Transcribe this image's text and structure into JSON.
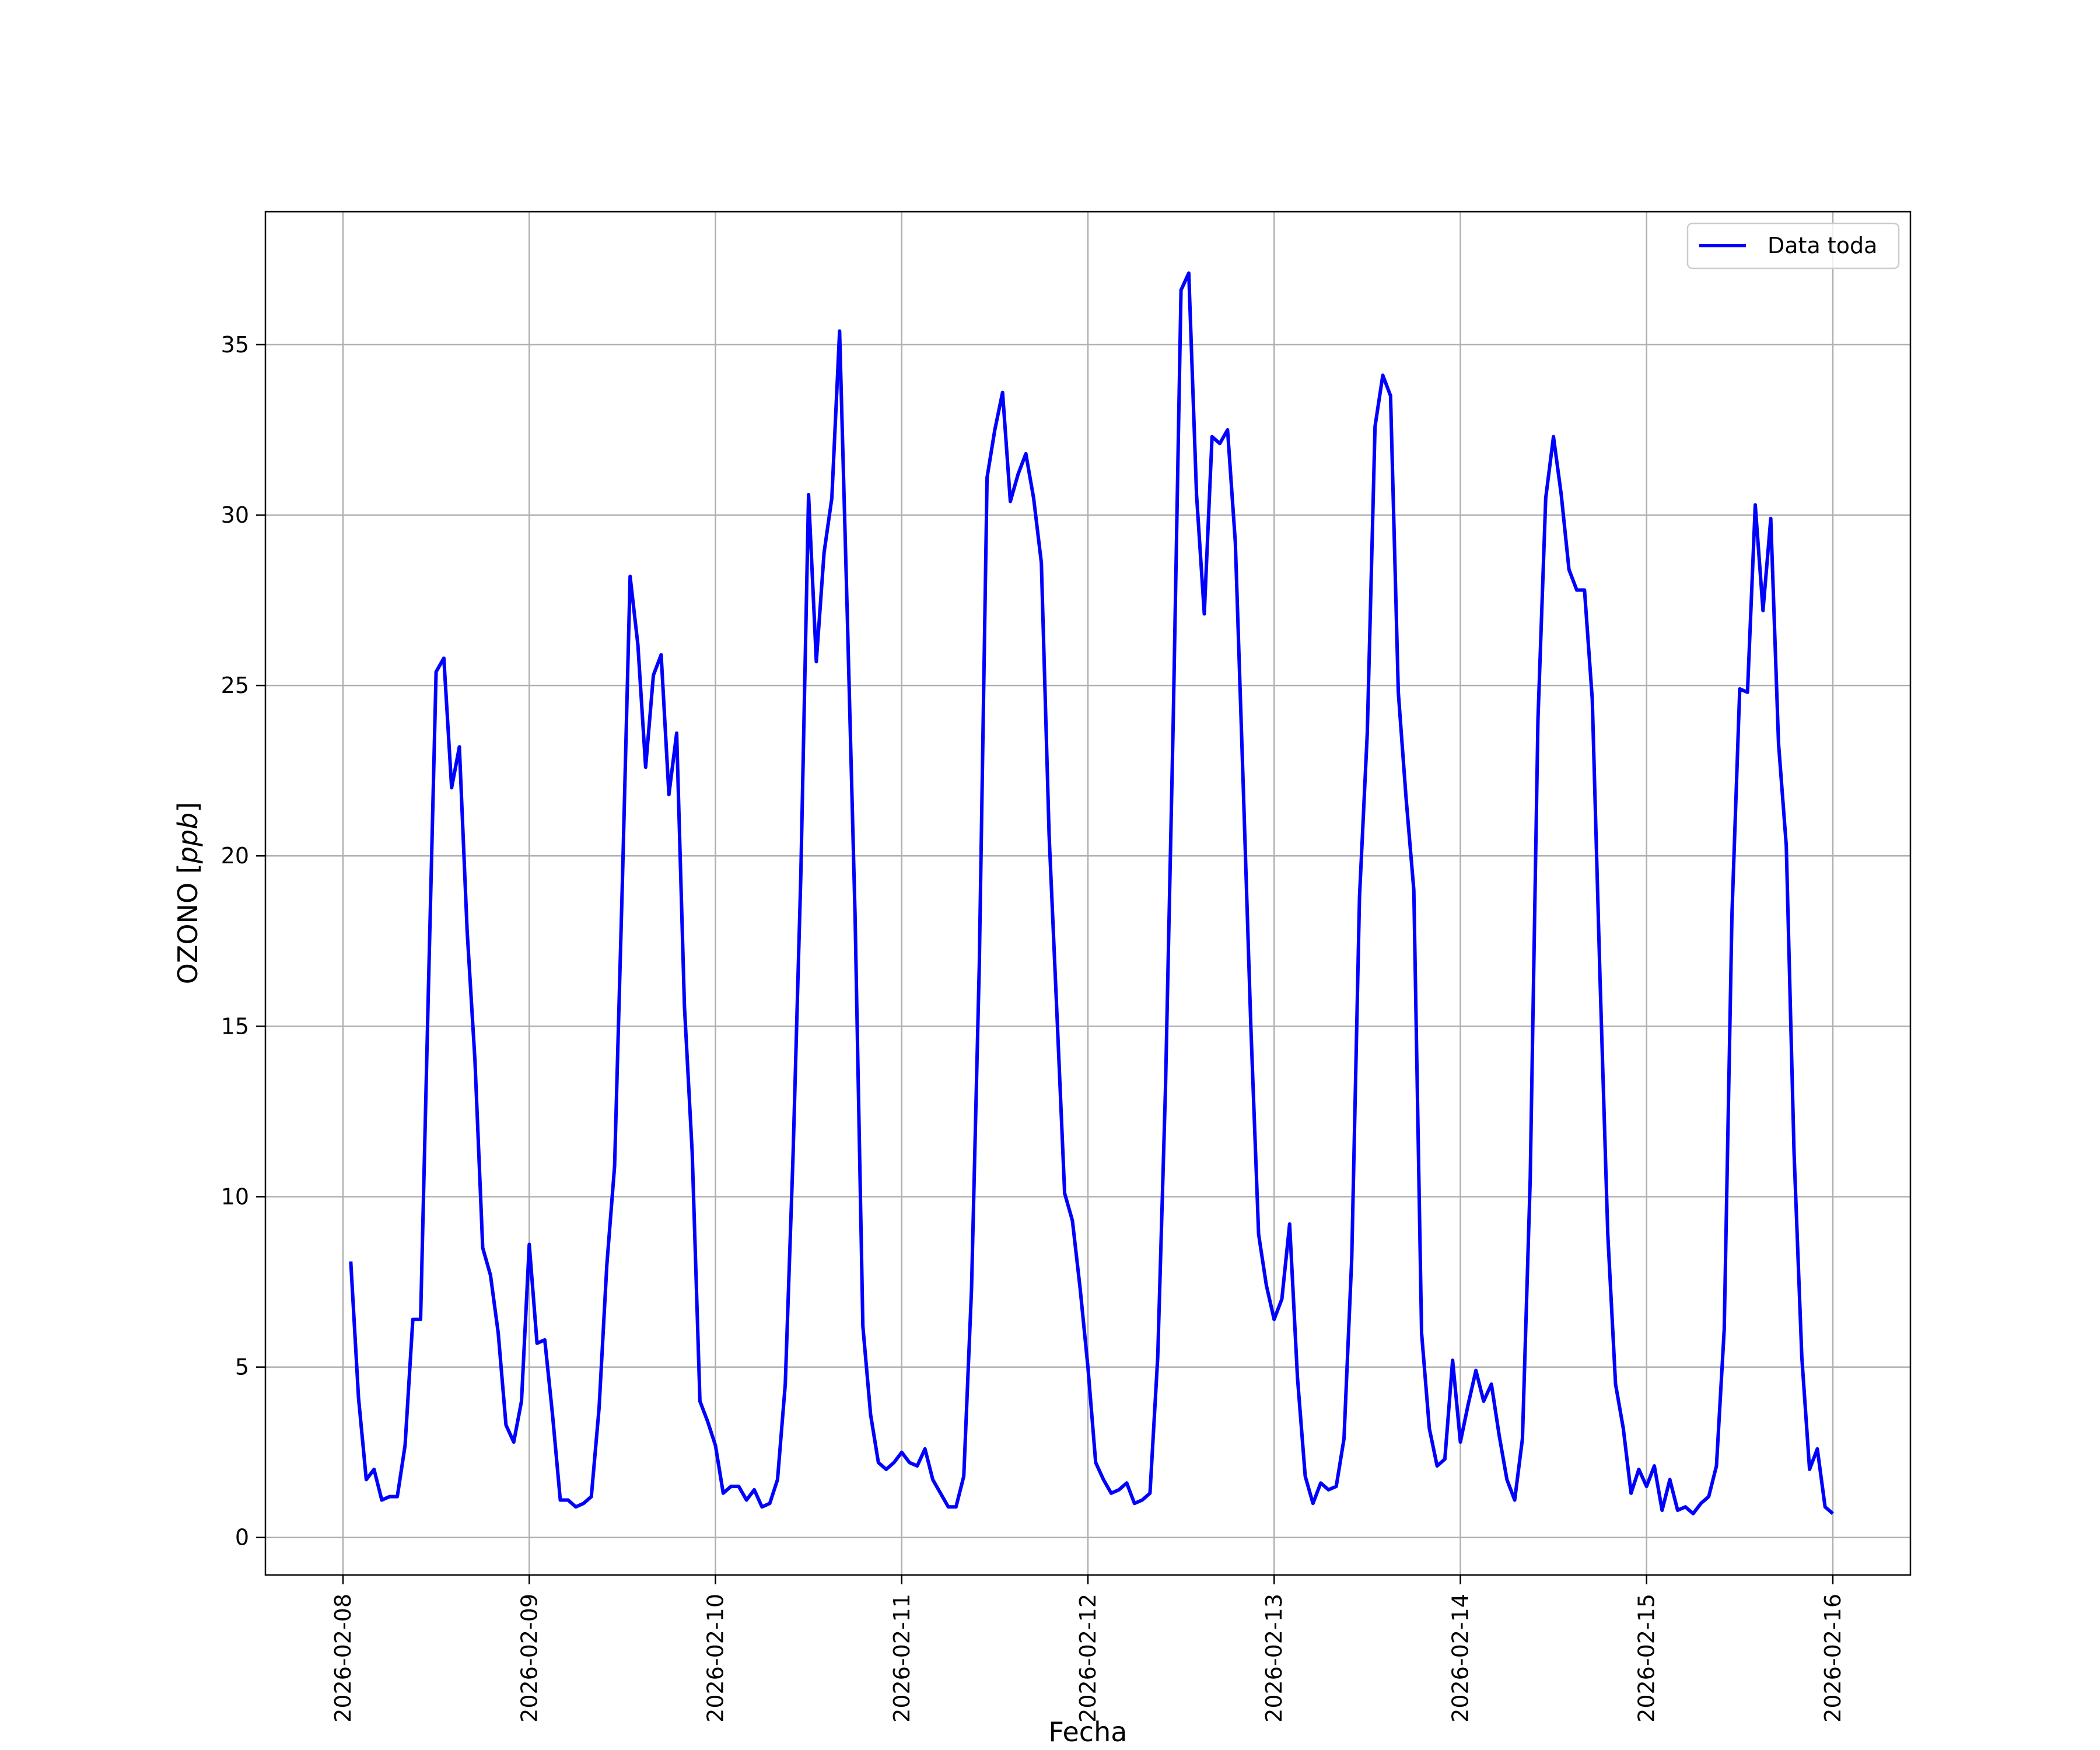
{
  "chart_data": {
    "type": "line",
    "title": "",
    "xlabel": "Fecha",
    "ylabel_prefix": "OZONO [",
    "ylabel_unit": "ppb",
    "ylabel_suffix": "]",
    "x_ticks": [
      "2026-02-08",
      "2026-02-09",
      "2026-02-10",
      "2026-02-11",
      "2026-02-12",
      "2026-02-13",
      "2026-02-14",
      "2026-02-15",
      "2026-02-16"
    ],
    "xlim": [
      "2026-02-07T14:00",
      "2026-02-16T10:00"
    ],
    "y_ticks": [
      0,
      5,
      10,
      15,
      20,
      25,
      30,
      35
    ],
    "ylim": [
      -1.1,
      38.9
    ],
    "grid": true,
    "legend": "top-right",
    "series": [
      {
        "name": "Data toda",
        "color": "#0000ff",
        "x_start": "2026-02-08T01:00",
        "step_hours": 1,
        "values": [
          8.1,
          4.1,
          1.7,
          2.0,
          1.1,
          1.2,
          1.2,
          2.7,
          6.4,
          6.4,
          16.0,
          25.4,
          25.8,
          22.0,
          23.2,
          17.8,
          14.0,
          8.5,
          7.7,
          6.0,
          3.3,
          2.8,
          4.0,
          8.6,
          5.7,
          5.8,
          3.6,
          1.1,
          1.1,
          0.9,
          1.0,
          1.2,
          3.8,
          8.0,
          10.9,
          19.2,
          28.2,
          26.2,
          22.6,
          25.3,
          25.9,
          21.8,
          23.6,
          15.6,
          11.3,
          4.0,
          3.4,
          2.7,
          1.3,
          1.5,
          1.5,
          1.1,
          1.4,
          0.9,
          1.0,
          1.7,
          4.5,
          11.2,
          19.4,
          30.6,
          25.7,
          28.9,
          30.5,
          35.4,
          27.0,
          18.2,
          6.2,
          3.6,
          2.2,
          2.0,
          2.2,
          2.5,
          2.2,
          2.1,
          2.6,
          1.7,
          1.3,
          0.9,
          0.9,
          1.8,
          7.3,
          16.8,
          31.1,
          32.5,
          33.6,
          30.4,
          31.2,
          31.8,
          30.5,
          28.6,
          20.6,
          15.4,
          10.1,
          9.3,
          7.3,
          5.0,
          2.2,
          1.7,
          1.3,
          1.4,
          1.6,
          1.0,
          1.1,
          1.3,
          5.3,
          13.2,
          24.0,
          36.6,
          37.1,
          30.6,
          27.1,
          32.3,
          32.1,
          32.5,
          29.2,
          22.2,
          15.0,
          8.9,
          7.4,
          6.4,
          7.0,
          9.2,
          4.7,
          1.8,
          1.0,
          1.6,
          1.4,
          1.5,
          2.9,
          8.2,
          18.8,
          23.6,
          32.6,
          34.1,
          33.5,
          24.8,
          21.7,
          19.0,
          6.0,
          3.2,
          2.1,
          2.3,
          5.2,
          2.8,
          3.9,
          4.9,
          4.0,
          4.5,
          3.0,
          1.7,
          1.1,
          2.9,
          10.5,
          24.0,
          30.5,
          32.3,
          30.6,
          28.4,
          27.8,
          27.8,
          24.6,
          16.4,
          8.9,
          4.5,
          3.2,
          1.3,
          2.0,
          1.5,
          2.1,
          0.8,
          1.7,
          0.8,
          0.9,
          0.7,
          1.0,
          1.2,
          2.1,
          6.1,
          18.3,
          24.9,
          24.8,
          30.3,
          27.2,
          29.9,
          23.3,
          20.3,
          11.3,
          5.3,
          2.0,
          2.6,
          0.9,
          0.7
        ]
      }
    ]
  }
}
